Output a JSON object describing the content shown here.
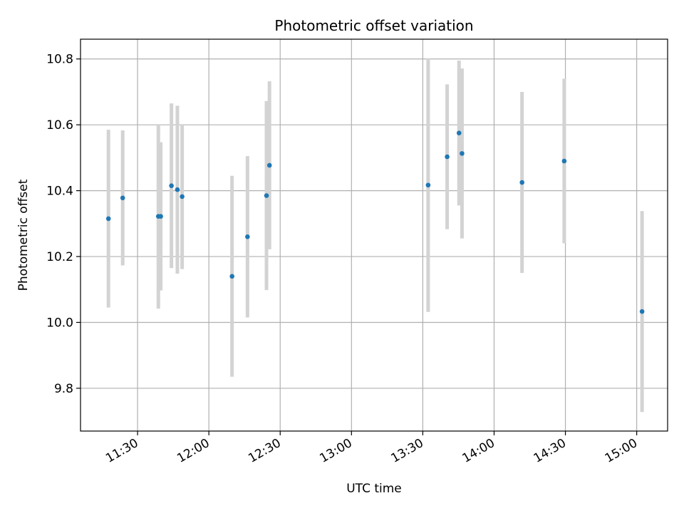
{
  "chart_data": {
    "type": "scatter",
    "title": "Photometric offset variation",
    "xlabel": "UTC time",
    "ylabel": "Photometric offset",
    "x_ticks": [
      "11:30",
      "12:00",
      "12:30",
      "13:00",
      "13:30",
      "14:00",
      "14:30",
      "15:00"
    ],
    "y_ticks": [
      "9.8",
      "10.0",
      "10.2",
      "10.4",
      "10.6",
      "10.8"
    ],
    "xlim": [
      "11:06",
      "15:13"
    ],
    "ylim": [
      9.67,
      10.86
    ],
    "grid": true,
    "point_color": "#1f77b4",
    "errorbar_color": "#d3d3d3",
    "points": [
      {
        "x": "11:17:45",
        "y": 10.315,
        "err": 0.27
      },
      {
        "x": "11:23:45",
        "y": 10.378,
        "err": 0.205
      },
      {
        "x": "11:38:45",
        "y": 10.322,
        "err": 0.28
      },
      {
        "x": "11:39:45",
        "y": 10.322,
        "err": 0.225
      },
      {
        "x": "11:44:15",
        "y": 10.415,
        "err": 0.25
      },
      {
        "x": "11:46:45",
        "y": 10.403,
        "err": 0.255
      },
      {
        "x": "11:48:45",
        "y": 10.382,
        "err": 0.22
      },
      {
        "x": "12:09:45",
        "y": 10.14,
        "err": 0.305
      },
      {
        "x": "12:16:15",
        "y": 10.26,
        "err": 0.245
      },
      {
        "x": "12:24:15",
        "y": 10.385,
        "err": 0.287
      },
      {
        "x": "12:25:30",
        "y": 10.477,
        "err": 0.255
      },
      {
        "x": "13:32:15",
        "y": 10.417,
        "err": 0.385
      },
      {
        "x": "13:40:15",
        "y": 10.503,
        "err": 0.22
      },
      {
        "x": "13:45:15",
        "y": 10.575,
        "err": 0.22
      },
      {
        "x": "13:46:30",
        "y": 10.513,
        "err": 0.258
      },
      {
        "x": "14:11:45",
        "y": 10.425,
        "err": 0.275
      },
      {
        "x": "14:29:30",
        "y": 10.49,
        "err": 0.25
      },
      {
        "x": "15:02:15",
        "y": 10.033,
        "err": 0.305
      }
    ]
  }
}
